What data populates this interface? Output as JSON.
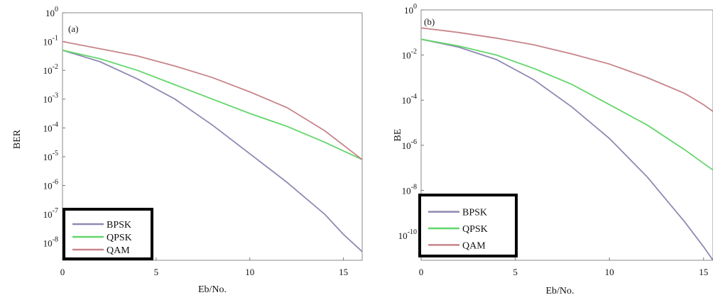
{
  "chart_data": [
    {
      "type": "line",
      "panel_label": "(a)",
      "xlabel": "Eb/No.",
      "ylabel": "BER",
      "xlim": [
        0,
        16
      ],
      "x_ticks": [
        "0",
        "5",
        "10",
        "15"
      ],
      "y_scale": "log",
      "ylim_exp": [
        -8.6,
        0
      ],
      "y_ticks": [
        {
          "exp": 0,
          "label": "10^0"
        },
        {
          "exp": -1,
          "label": "10^-1"
        },
        {
          "exp": -2,
          "label": "10^-2"
        },
        {
          "exp": -3,
          "label": "10^-3"
        },
        {
          "exp": -4,
          "label": "10^-4"
        },
        {
          "exp": -5,
          "label": "10^-5"
        },
        {
          "exp": -6,
          "label": "10^-6"
        },
        {
          "exp": -7,
          "label": "10^-7"
        },
        {
          "exp": -8,
          "label": "10^-8"
        }
      ],
      "legend_position": "bottom-left",
      "series": [
        {
          "name": "BPSK",
          "color": "#8f89b2",
          "x": [
            0,
            2,
            4,
            6,
            8,
            10,
            12,
            14,
            15,
            16
          ],
          "log10_y": [
            -1.3,
            -1.7,
            -2.3,
            -3.0,
            -3.9,
            -4.9,
            -5.9,
            -7.0,
            -7.7,
            -8.3
          ]
        },
        {
          "name": "QPSK",
          "color": "#63d66b",
          "x": [
            0,
            2,
            4,
            6,
            8,
            10,
            12,
            14,
            15,
            16
          ],
          "log10_y": [
            -1.3,
            -1.6,
            -2.0,
            -2.5,
            -3.0,
            -3.5,
            -3.95,
            -4.5,
            -4.8,
            -5.1
          ]
        },
        {
          "name": "QAM",
          "color": "#c7848a",
          "x": [
            0,
            2,
            4,
            6,
            8,
            10,
            12,
            14,
            15,
            16
          ],
          "log10_y": [
            -1.0,
            -1.25,
            -1.5,
            -1.85,
            -2.25,
            -2.75,
            -3.3,
            -4.1,
            -4.6,
            -5.1
          ]
        }
      ]
    },
    {
      "type": "line",
      "panel_label": "(b)",
      "xlabel": "Eb/No.",
      "ylabel": "BE",
      "xlim": [
        0,
        15.5
      ],
      "x_ticks": [
        "0",
        "5",
        "10",
        "15"
      ],
      "y_scale": "log",
      "ylim_exp": [
        -11.1,
        0
      ],
      "y_ticks": [
        {
          "exp": 0,
          "label": "10^0"
        },
        {
          "exp": -2,
          "label": "10^-2"
        },
        {
          "exp": -4,
          "label": "10^-4"
        },
        {
          "exp": -6,
          "label": "10^-6"
        },
        {
          "exp": -8,
          "label": "10^-8"
        },
        {
          "exp": -10,
          "label": "10^-10"
        }
      ],
      "legend_position": "bottom-left",
      "series": [
        {
          "name": "BPSK",
          "color": "#8f89b2",
          "x": [
            0,
            2,
            4,
            6,
            8,
            10,
            12,
            14,
            15,
            15.5
          ],
          "log10_y": [
            -1.3,
            -1.65,
            -2.2,
            -3.1,
            -4.3,
            -5.7,
            -7.4,
            -9.4,
            -10.5,
            -11.1
          ]
        },
        {
          "name": "QPSK",
          "color": "#63d66b",
          "x": [
            0,
            2,
            4,
            6,
            8,
            10,
            12,
            14,
            15,
            15.5
          ],
          "log10_y": [
            -1.3,
            -1.6,
            -2.0,
            -2.6,
            -3.3,
            -4.2,
            -5.1,
            -6.2,
            -6.8,
            -7.1
          ]
        },
        {
          "name": "QAM",
          "color": "#c7848a",
          "x": [
            0,
            2,
            4,
            6,
            8,
            10,
            12,
            14,
            15,
            15.5
          ],
          "log10_y": [
            -0.8,
            -1.0,
            -1.25,
            -1.55,
            -1.95,
            -2.4,
            -3.0,
            -3.7,
            -4.2,
            -4.5
          ]
        }
      ]
    }
  ]
}
